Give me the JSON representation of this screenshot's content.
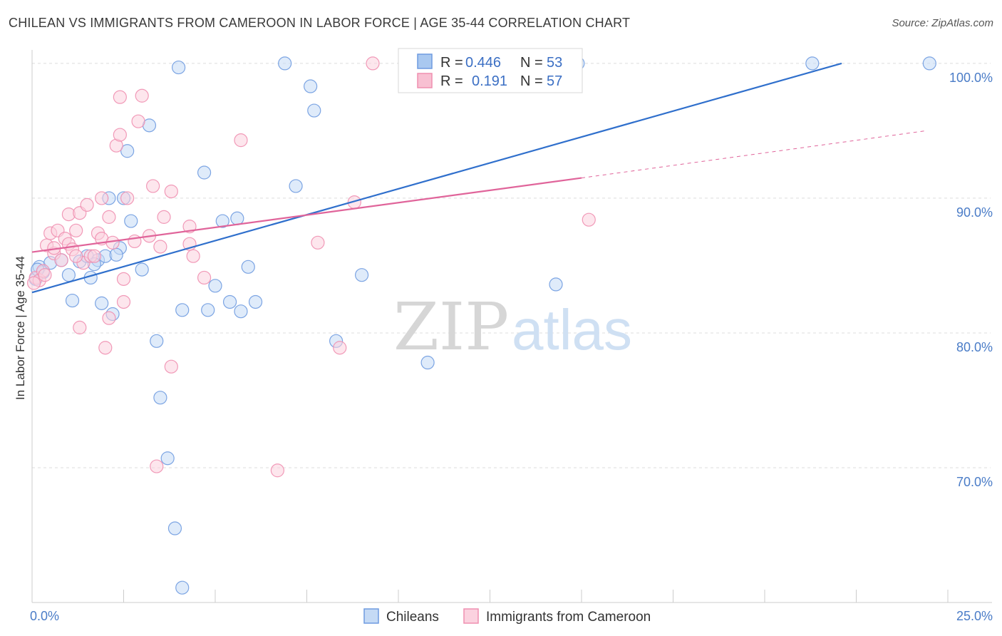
{
  "title": "CHILEAN VS IMMIGRANTS FROM CAMEROON IN LABOR FORCE | AGE 35-44 CORRELATION CHART",
  "source": "Source: ZipAtlas.com",
  "watermark": {
    "zip": "ZIP",
    "atlas": "atlas"
  },
  "legend": {
    "rows": [
      {
        "r_label": "R =",
        "r_value": "0.446",
        "n_label": "N =",
        "n_value": "53",
        "color": "#a9c8f0",
        "stroke": "#6f9be0"
      },
      {
        "r_label": "R =",
        "r_value": "0.191",
        "n_label": "N =",
        "n_value": "57",
        "color": "#f8c0d2",
        "stroke": "#ef8fb0"
      }
    ]
  },
  "bottom_legend": [
    {
      "label": "Chileans",
      "color": "#c5daf5",
      "stroke": "#6f9be0"
    },
    {
      "label": "Immigrants from Cameroon",
      "color": "#fbd2df",
      "stroke": "#ef8fb0"
    }
  ],
  "chart_data": {
    "type": "scatter",
    "title": "CHILEAN VS IMMIGRANTS FROM CAMEROON IN LABOR FORCE | AGE 35-44 CORRELATION CHART",
    "xlabel": "",
    "ylabel": "In Labor Force | Age 35-44",
    "xlim": [
      0,
      25
    ],
    "ylim": [
      60,
      101
    ],
    "x_tick_labels": [
      {
        "value": 0,
        "label": "0.0%"
      },
      {
        "value": 25,
        "label": "25.0%"
      }
    ],
    "y_tick_labels": [
      {
        "value": 100,
        "label": "100.0%"
      },
      {
        "value": 90,
        "label": "90.0%"
      },
      {
        "value": 80,
        "label": "80.0%"
      },
      {
        "value": 70,
        "label": "70.0%"
      }
    ],
    "grid": true,
    "series": [
      {
        "name": "Chileans",
        "color": "#6f9be0",
        "fill": "#c5daf5",
        "trend": {
          "x0": 0,
          "y0": 83.0,
          "x1": 22.1,
          "y1": 100.0,
          "dashed_to": null
        },
        "points": [
          [
            0.2,
            84.9
          ],
          [
            0.3,
            84.5
          ],
          [
            0.5,
            85.2
          ],
          [
            0.8,
            85.4
          ],
          [
            1.0,
            84.3
          ],
          [
            1.1,
            82.4
          ],
          [
            1.3,
            85.3
          ],
          [
            1.5,
            85.7
          ],
          [
            1.6,
            84.1
          ],
          [
            1.8,
            85.4
          ],
          [
            1.9,
            82.2
          ],
          [
            2.0,
            85.7
          ],
          [
            2.1,
            90.0
          ],
          [
            2.2,
            81.4
          ],
          [
            2.4,
            86.3
          ],
          [
            2.5,
            90.0
          ],
          [
            2.6,
            93.5
          ],
          [
            2.7,
            88.3
          ],
          [
            3.0,
            84.7
          ],
          [
            3.2,
            95.4
          ],
          [
            3.4,
            79.4
          ],
          [
            3.5,
            75.2
          ],
          [
            3.7,
            70.7
          ],
          [
            3.9,
            65.5
          ],
          [
            4.0,
            99.7
          ],
          [
            4.1,
            61.1
          ],
          [
            4.1,
            81.7
          ],
          [
            4.7,
            91.9
          ],
          [
            4.8,
            81.7
          ],
          [
            5.0,
            83.5
          ],
          [
            5.2,
            88.3
          ],
          [
            5.4,
            82.3
          ],
          [
            5.6,
            88.5
          ],
          [
            5.7,
            81.6
          ],
          [
            5.9,
            84.9
          ],
          [
            6.1,
            82.3
          ],
          [
            6.9,
            100.0
          ],
          [
            7.2,
            90.9
          ],
          [
            7.6,
            98.3
          ],
          [
            7.7,
            96.5
          ],
          [
            8.3,
            79.4
          ],
          [
            9.0,
            84.3
          ],
          [
            10.8,
            77.8
          ],
          [
            11.6,
            100.0
          ],
          [
            12.8,
            100.0
          ],
          [
            14.3,
            83.6
          ],
          [
            14.9,
            100.0
          ],
          [
            21.3,
            100.0
          ],
          [
            24.5,
            100.0
          ],
          [
            0.1,
            84.0
          ],
          [
            0.15,
            84.7
          ],
          [
            1.7,
            85.1
          ],
          [
            2.3,
            85.8
          ]
        ]
      },
      {
        "name": "Immigrants from Cameroon",
        "color": "#ef8fb0",
        "fill": "#fbd2df",
        "trend": {
          "x0": 0,
          "y0": 86.0,
          "x1": 15.0,
          "y1": 91.5,
          "dashed_to": {
            "x": 24.4,
            "y": 95.0
          }
        },
        "points": [
          [
            0.1,
            84.1
          ],
          [
            0.2,
            83.9
          ],
          [
            0.3,
            84.6
          ],
          [
            0.4,
            86.5
          ],
          [
            0.5,
            87.4
          ],
          [
            0.6,
            85.9
          ],
          [
            0.7,
            87.6
          ],
          [
            0.8,
            85.4
          ],
          [
            0.9,
            87.0
          ],
          [
            1.0,
            88.8
          ],
          [
            1.0,
            86.6
          ],
          [
            1.1,
            86.2
          ],
          [
            1.2,
            87.6
          ],
          [
            1.3,
            88.9
          ],
          [
            1.3,
            80.4
          ],
          [
            1.4,
            85.2
          ],
          [
            1.5,
            89.5
          ],
          [
            1.6,
            85.7
          ],
          [
            1.7,
            85.7
          ],
          [
            1.8,
            87.4
          ],
          [
            1.9,
            90.0
          ],
          [
            1.9,
            87.0
          ],
          [
            2.0,
            78.9
          ],
          [
            2.1,
            88.6
          ],
          [
            2.1,
            81.1
          ],
          [
            2.2,
            86.7
          ],
          [
            2.3,
            93.9
          ],
          [
            2.4,
            94.7
          ],
          [
            2.4,
            97.5
          ],
          [
            2.5,
            84.0
          ],
          [
            2.5,
            82.3
          ],
          [
            2.6,
            90.0
          ],
          [
            2.8,
            86.8
          ],
          [
            2.9,
            95.7
          ],
          [
            3.0,
            97.6
          ],
          [
            3.2,
            87.2
          ],
          [
            3.3,
            90.9
          ],
          [
            3.4,
            70.1
          ],
          [
            3.5,
            86.4
          ],
          [
            3.6,
            88.6
          ],
          [
            3.8,
            90.5
          ],
          [
            3.8,
            77.5
          ],
          [
            4.3,
            87.9
          ],
          [
            4.3,
            86.6
          ],
          [
            4.4,
            85.7
          ],
          [
            4.7,
            84.1
          ],
          [
            5.7,
            94.3
          ],
          [
            6.7,
            69.8
          ],
          [
            7.8,
            86.7
          ],
          [
            8.4,
            78.9
          ],
          [
            8.8,
            89.7
          ],
          [
            9.3,
            100.0
          ],
          [
            15.2,
            88.4
          ],
          [
            0.6,
            86.3
          ],
          [
            1.2,
            85.7
          ],
          [
            0.05,
            83.7
          ],
          [
            0.35,
            84.3
          ]
        ]
      }
    ]
  }
}
